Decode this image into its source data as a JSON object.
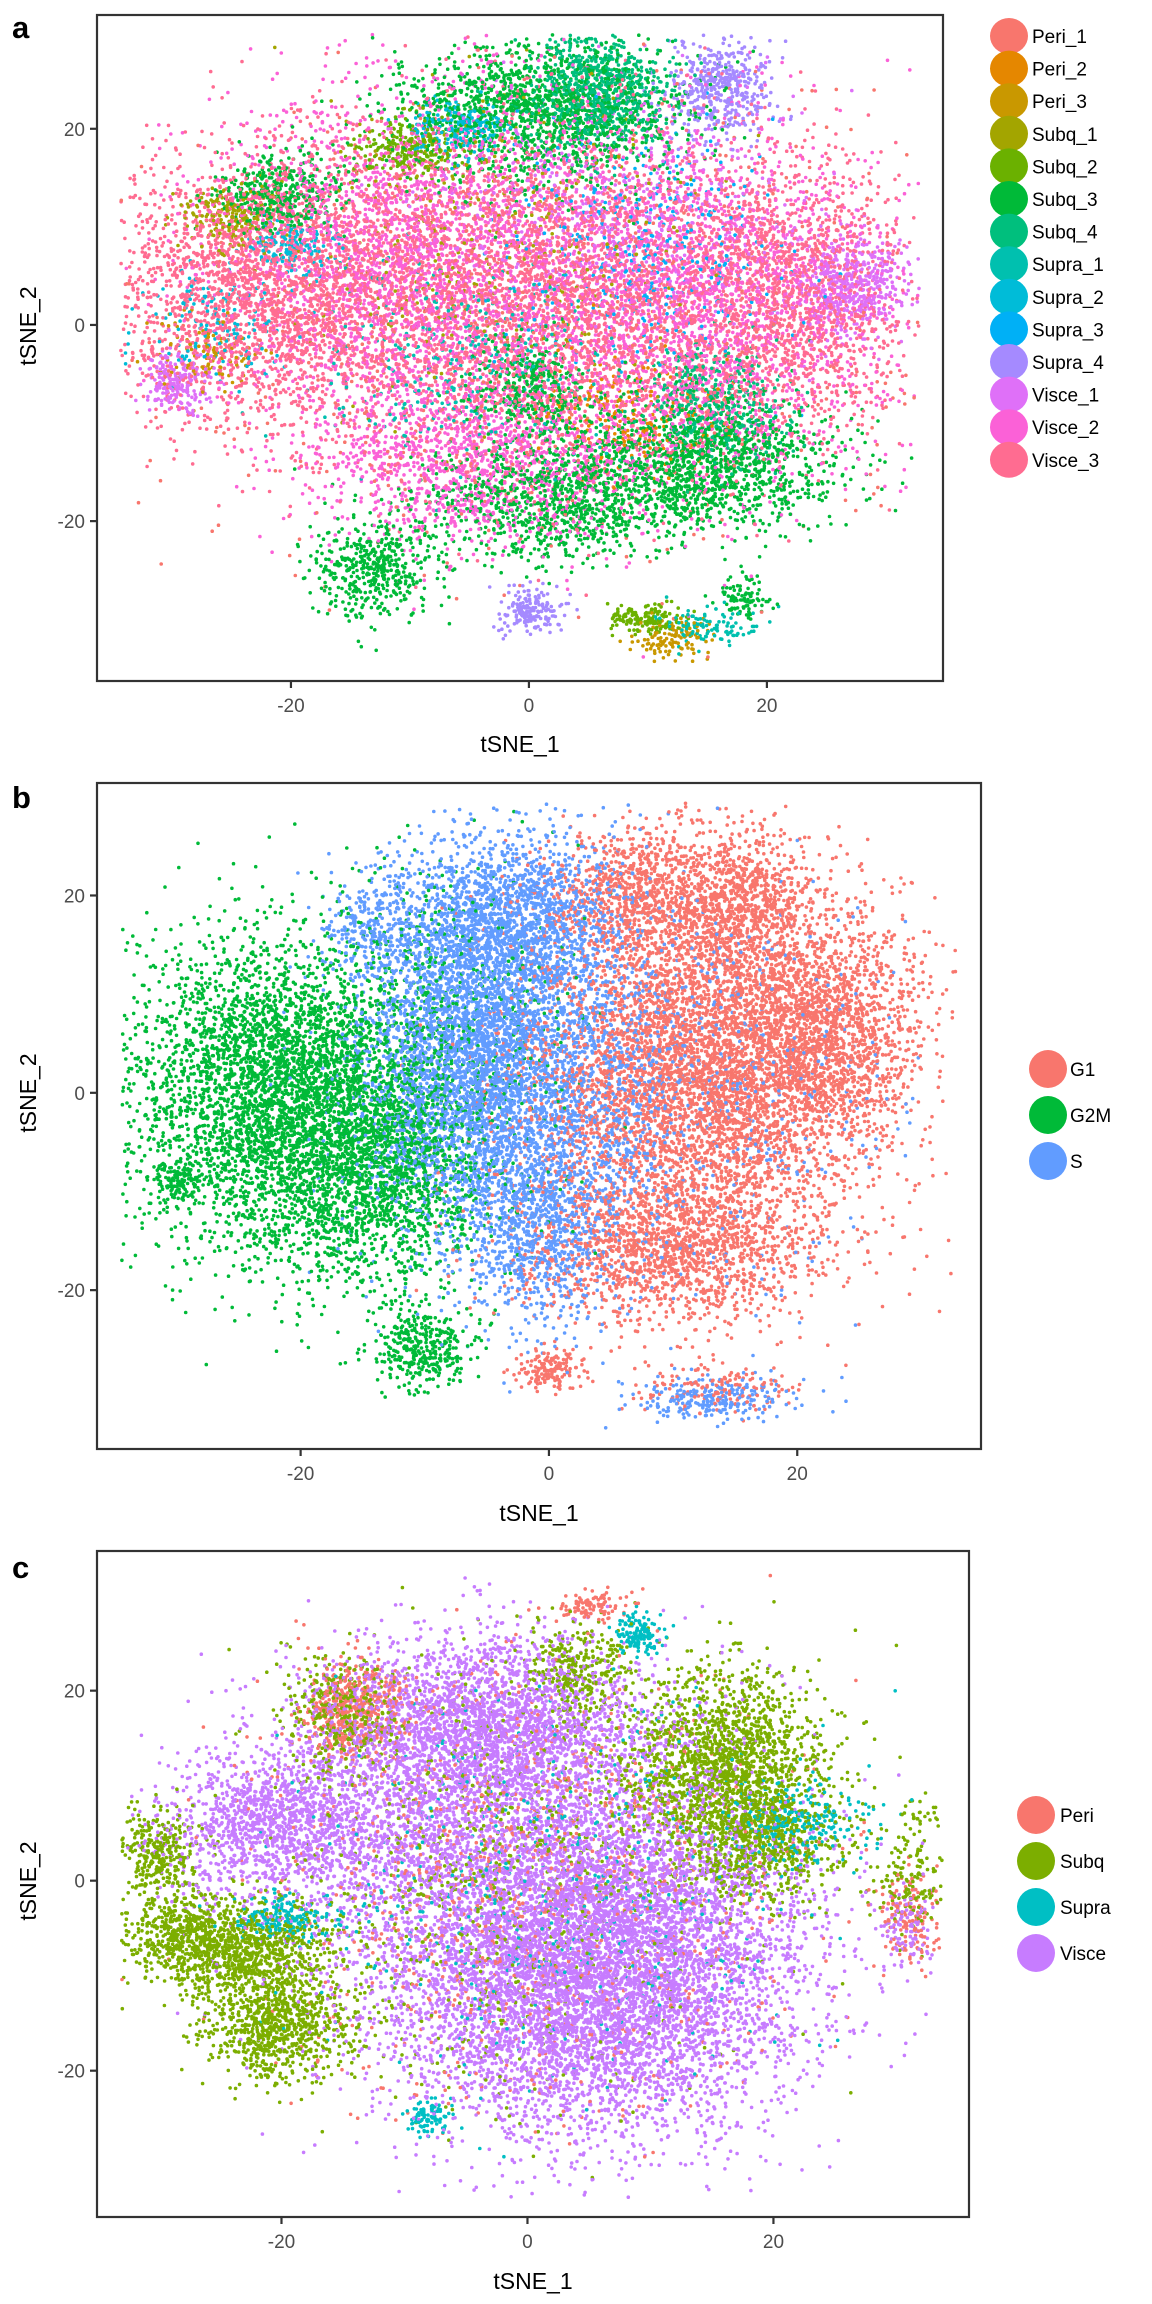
{
  "chart_data": [
    {
      "panel": "a",
      "type": "scatter",
      "title": "",
      "xlabel": "tSNE_1",
      "ylabel": "tSNE_2",
      "xlim": [
        -36.3,
        34.8
      ],
      "ylim": [
        -36.3,
        31.6
      ],
      "xticks": [
        -20,
        0,
        20
      ],
      "yticks": [
        -20,
        0,
        20
      ],
      "xtick_labels": [
        "-20",
        "0",
        "20"
      ],
      "ytick_labels": [
        "-20",
        "0",
        "20"
      ],
      "grid": false,
      "legend_position": "right",
      "legend": [
        {
          "label": "Peri_1",
          "color": "#F8766D"
        },
        {
          "label": "Peri_2",
          "color": "#E58700"
        },
        {
          "label": "Peri_3",
          "color": "#C99800"
        },
        {
          "label": "Subq_1",
          "color": "#A3A500"
        },
        {
          "label": "Subq_2",
          "color": "#6BB100"
        },
        {
          "label": "Subq_3",
          "color": "#00BA38"
        },
        {
          "label": "Subq_4",
          "color": "#00BF7D"
        },
        {
          "label": "Supra_1",
          "color": "#00C0AF"
        },
        {
          "label": "Supra_2",
          "color": "#00BCD8"
        },
        {
          "label": "Supra_3",
          "color": "#00B0F6"
        },
        {
          "label": "Supra_4",
          "color": "#A58AFF"
        },
        {
          "label": "Visce_1",
          "color": "#DF70F8"
        },
        {
          "label": "Visce_2",
          "color": "#FB61D7"
        },
        {
          "label": "Visce_3",
          "color": "#FF6C91"
        }
      ],
      "clusters": [
        {
          "class": 13,
          "cx": -22,
          "cy": 4,
          "sx": 7,
          "sy": 7,
          "n": 2600
        },
        {
          "class": 12,
          "cx": -10,
          "cy": 6,
          "sx": 8,
          "sy": 9,
          "n": 2600
        },
        {
          "class": 13,
          "cx": 2,
          "cy": 3,
          "sx": 10,
          "sy": 9,
          "n": 3200
        },
        {
          "class": 12,
          "cx": 14,
          "cy": 2,
          "sx": 8,
          "sy": 9,
          "n": 2400
        },
        {
          "class": 13,
          "cx": 22,
          "cy": 3,
          "sx": 5,
          "sy": 7,
          "n": 1400
        },
        {
          "class": 12,
          "cx": -4,
          "cy": -14,
          "sx": 7,
          "sy": 4,
          "n": 1200
        },
        {
          "class": 0,
          "cx": 0,
          "cy": 0,
          "sx": 16,
          "sy": 12,
          "n": 1000
        },
        {
          "class": 5,
          "cx": 1,
          "cy": 22,
          "sx": 6,
          "sy": 3.5,
          "n": 1500
        },
        {
          "class": 6,
          "cx": 6,
          "cy": 24,
          "sx": 3,
          "sy": 3,
          "n": 700
        },
        {
          "class": 10,
          "cx": 16,
          "cy": 24,
          "sx": 2.2,
          "sy": 2.5,
          "n": 450
        },
        {
          "class": 11,
          "cx": 27,
          "cy": 4,
          "sx": 2.5,
          "sy": 2.5,
          "n": 500
        },
        {
          "class": 11,
          "cx": -29.5,
          "cy": -6,
          "sx": 1.5,
          "sy": 1.5,
          "n": 220
        },
        {
          "class": 5,
          "cx": 14,
          "cy": -14,
          "sx": 6,
          "sy": 3.5,
          "n": 1400
        },
        {
          "class": 5,
          "cx": 2,
          "cy": -18,
          "sx": 6,
          "sy": 3,
          "n": 900
        },
        {
          "class": 6,
          "cx": 16,
          "cy": -8,
          "sx": 3,
          "sy": 3,
          "n": 400
        },
        {
          "class": 5,
          "cx": 0,
          "cy": -6,
          "sx": 2.5,
          "sy": 2.5,
          "n": 350
        },
        {
          "class": 5,
          "cx": -13,
          "cy": -25,
          "sx": 2.5,
          "sy": 2.5,
          "n": 450
        },
        {
          "class": 10,
          "cx": 0,
          "cy": -29,
          "sx": 1.3,
          "sy": 1.2,
          "n": 180
        },
        {
          "class": 4,
          "cx": 10,
          "cy": -30,
          "sx": 1.5,
          "sy": 0.8,
          "n": 150
        },
        {
          "class": 2,
          "cx": 12,
          "cy": -32,
          "sx": 1.5,
          "sy": 1,
          "n": 120
        },
        {
          "class": 7,
          "cx": 15,
          "cy": -31,
          "sx": 2,
          "sy": 1.2,
          "n": 110
        },
        {
          "class": 5,
          "cx": 18,
          "cy": -28,
          "sx": 1.2,
          "sy": 1,
          "n": 90
        },
        {
          "class": 5,
          "cx": -21,
          "cy": 13.5,
          "sx": 2.5,
          "sy": 2,
          "n": 400
        },
        {
          "class": 3,
          "cx": -25,
          "cy": 11,
          "sx": 2,
          "sy": 1.5,
          "n": 200
        },
        {
          "class": 4,
          "cx": -10,
          "cy": 18,
          "sx": 2,
          "sy": 1.5,
          "n": 250
        },
        {
          "class": 8,
          "cx": -6,
          "cy": 20,
          "sx": 2,
          "sy": 1.5,
          "n": 200
        },
        {
          "class": 8,
          "cx": -20,
          "cy": 8,
          "sx": 2,
          "sy": 1.2,
          "n": 150
        },
        {
          "class": 9,
          "cx": 10,
          "cy": 8,
          "sx": 6,
          "sy": 6,
          "n": 400
        },
        {
          "class": 7,
          "cx": -5,
          "cy": -4,
          "sx": 6,
          "sy": 5,
          "n": 350
        },
        {
          "class": 1,
          "cx": 8,
          "cy": -9,
          "sx": 4,
          "sy": 3,
          "n": 200
        },
        {
          "class": 3,
          "cx": -4,
          "cy": 8,
          "sx": 8,
          "sy": 8,
          "n": 350
        },
        {
          "class": 11,
          "cx": 6,
          "cy": 12,
          "sx": 8,
          "sy": 6,
          "n": 600
        },
        {
          "class": 8,
          "cx": -26,
          "cy": 0,
          "sx": 3,
          "sy": 3,
          "n": 150
        },
        {
          "class": 2,
          "cx": -27,
          "cy": -3,
          "sx": 2,
          "sy": 2,
          "n": 100
        }
      ]
    },
    {
      "panel": "b",
      "type": "scatter",
      "title": "",
      "xlabel": "tSNE_1",
      "ylabel": "tSNE_2",
      "xlim": [
        -36.4,
        34.8
      ],
      "ylim": [
        -36.1,
        31.4
      ],
      "xticks": [
        -20,
        0,
        20
      ],
      "yticks": [
        -20,
        0,
        20
      ],
      "xtick_labels": [
        "-20",
        "0",
        "20"
      ],
      "ytick_labels": [
        "-20",
        "0",
        "20"
      ],
      "grid": false,
      "legend_position": "right",
      "legend": [
        {
          "label": "G1",
          "color": "#F8766D"
        },
        {
          "label": "G2M",
          "color": "#00BA38"
        },
        {
          "label": "S",
          "color": "#619CFF"
        }
      ],
      "clusters": [
        {
          "class": 1,
          "cx": -22,
          "cy": 0,
          "sx": 6,
          "sy": 8,
          "n": 4200
        },
        {
          "class": 1,
          "cx": -14,
          "cy": -8,
          "sx": 4,
          "sy": 6,
          "n": 1500
        },
        {
          "class": 1,
          "cx": -30,
          "cy": -9,
          "sx": 1,
          "sy": 1,
          "n": 90
        },
        {
          "class": 1,
          "cx": -10,
          "cy": -26,
          "sx": 2,
          "sy": 2,
          "n": 350
        },
        {
          "class": 2,
          "cx": -6,
          "cy": 4,
          "sx": 4.5,
          "sy": 9,
          "n": 4200
        },
        {
          "class": 2,
          "cx": -3,
          "cy": 18,
          "sx": 4,
          "sy": 4,
          "n": 1200
        },
        {
          "class": 2,
          "cx": -1,
          "cy": -14,
          "sx": 3,
          "sy": 5,
          "n": 800
        },
        {
          "class": 0,
          "cx": 12,
          "cy": 2,
          "sx": 7,
          "sy": 9,
          "n": 5200
        },
        {
          "class": 0,
          "cx": 22,
          "cy": 6,
          "sx": 4,
          "sy": 6,
          "n": 1600
        },
        {
          "class": 0,
          "cx": 8,
          "cy": 20,
          "sx": 4,
          "sy": 3.5,
          "n": 900
        },
        {
          "class": 0,
          "cx": 16,
          "cy": 19,
          "sx": 2.5,
          "sy": 4,
          "n": 700
        },
        {
          "class": 0,
          "cx": 10,
          "cy": -16,
          "sx": 6,
          "sy": 3.5,
          "n": 1400
        },
        {
          "class": 0,
          "cx": 0,
          "cy": -28,
          "sx": 1.2,
          "sy": 1,
          "n": 160
        },
        {
          "class": 2,
          "cx": 13,
          "cy": -31,
          "sx": 3,
          "sy": 1.2,
          "n": 250
        },
        {
          "class": 0,
          "cx": 14,
          "cy": -30,
          "sx": 3,
          "sy": 1.2,
          "n": 150
        },
        {
          "class": 2,
          "cx": 4,
          "cy": 2,
          "sx": 4,
          "sy": 10,
          "n": 900
        },
        {
          "class": 1,
          "cx": -8,
          "cy": 4,
          "sx": 5,
          "sy": 10,
          "n": 700
        },
        {
          "class": 2,
          "cx": 12,
          "cy": 0,
          "sx": 8,
          "sy": 10,
          "n": 600
        },
        {
          "class": 2,
          "cx": -14,
          "cy": 16,
          "sx": 2,
          "sy": 3,
          "n": 300
        }
      ]
    },
    {
      "panel": "c",
      "type": "scatter",
      "title": "",
      "xlabel": "tSNE_1",
      "ylabel": "tSNE_2",
      "xlim": [
        -35.0,
        35.9
      ],
      "ylim": [
        -35.4,
        34.7
      ],
      "xticks": [
        -20,
        0,
        20
      ],
      "yticks": [
        -20,
        0,
        20
      ],
      "xtick_labels": [
        "-20",
        "0",
        "20"
      ],
      "ytick_labels": [
        "-20",
        "0",
        "20"
      ],
      "grid": false,
      "legend_position": "right",
      "legend": [
        {
          "label": "Peri",
          "color": "#F8766D"
        },
        {
          "label": "Subq",
          "color": "#7CAE00"
        },
        {
          "label": "Supra",
          "color": "#00BFC4"
        },
        {
          "label": "Visce",
          "color": "#C77CFF"
        }
      ],
      "clusters": [
        {
          "class": 3,
          "cx": -4,
          "cy": 16,
          "sx": 7,
          "sy": 5,
          "n": 2800
        },
        {
          "class": 3,
          "cx": -20,
          "cy": 6,
          "sx": 5,
          "sy": 4,
          "n": 1500
        },
        {
          "class": 3,
          "cx": 0,
          "cy": 0,
          "sx": 9,
          "sy": 9,
          "n": 3800
        },
        {
          "class": 3,
          "cx": 5,
          "cy": -14,
          "sx": 8,
          "sy": 7,
          "n": 3800
        },
        {
          "class": 3,
          "cx": 10,
          "cy": -4,
          "sx": 7,
          "sy": 7,
          "n": 2000
        },
        {
          "class": 1,
          "cx": -28,
          "cy": -6,
          "sx": 2.5,
          "sy": 2.5,
          "n": 600
        },
        {
          "class": 1,
          "cx": -30,
          "cy": 3,
          "sx": 1.5,
          "sy": 2.5,
          "n": 300
        },
        {
          "class": 1,
          "cx": -22,
          "cy": -8,
          "sx": 3,
          "sy": 3,
          "n": 900
        },
        {
          "class": 1,
          "cx": -20,
          "cy": -16,
          "sx": 3,
          "sy": 2.5,
          "n": 700
        },
        {
          "class": 1,
          "cx": 16,
          "cy": 12,
          "sx": 4,
          "sy": 5,
          "n": 1800
        },
        {
          "class": 1,
          "cx": 19,
          "cy": 4,
          "sx": 3,
          "sy": 3,
          "n": 600
        },
        {
          "class": 1,
          "cx": -15,
          "cy": 18,
          "sx": 2.5,
          "sy": 3,
          "n": 350
        },
        {
          "class": 1,
          "cx": -2,
          "cy": 0,
          "sx": 9,
          "sy": 12,
          "n": 900
        },
        {
          "class": 1,
          "cx": 4,
          "cy": 22,
          "sx": 2,
          "sy": 2.5,
          "n": 300
        },
        {
          "class": 0,
          "cx": -14,
          "cy": 18,
          "sx": 2,
          "sy": 2.5,
          "n": 450
        },
        {
          "class": 0,
          "cx": 0,
          "cy": 0,
          "sx": 10,
          "sy": 12,
          "n": 1100
        },
        {
          "class": 0,
          "cx": 5,
          "cy": 29,
          "sx": 1.5,
          "sy": 0.8,
          "n": 100
        },
        {
          "class": 0,
          "cx": 31,
          "cy": -4,
          "sx": 1.2,
          "sy": 2.5,
          "n": 150
        },
        {
          "class": 2,
          "cx": 9,
          "cy": 26,
          "sx": 1,
          "sy": 1,
          "n": 130
        },
        {
          "class": 2,
          "cx": -20,
          "cy": -4,
          "sx": 2,
          "sy": 1.2,
          "n": 200
        },
        {
          "class": 2,
          "cx": -8,
          "cy": -25,
          "sx": 1,
          "sy": 1,
          "n": 90
        },
        {
          "class": 2,
          "cx": 22,
          "cy": 6,
          "sx": 3,
          "sy": 2,
          "n": 250
        },
        {
          "class": 2,
          "cx": 2,
          "cy": 0,
          "sx": 10,
          "sy": 10,
          "n": 500
        },
        {
          "class": 1,
          "cx": 31,
          "cy": 0,
          "sx": 1.5,
          "sy": 3,
          "n": 150
        },
        {
          "class": 3,
          "cx": 31,
          "cy": -5,
          "sx": 1.2,
          "sy": 2,
          "n": 110
        },
        {
          "class": 1,
          "cx": 32,
          "cy": 7,
          "sx": 0.6,
          "sy": 1,
          "n": 25
        }
      ]
    }
  ],
  "panels": [
    {
      "label": "a",
      "xlabel": "tSNE_1",
      "ylabel": "tSNE_2"
    },
    {
      "label": "b",
      "xlabel": "tSNE_1",
      "ylabel": "tSNE_2"
    },
    {
      "label": "c",
      "xlabel": "tSNE_1",
      "ylabel": "tSNE_2"
    }
  ]
}
